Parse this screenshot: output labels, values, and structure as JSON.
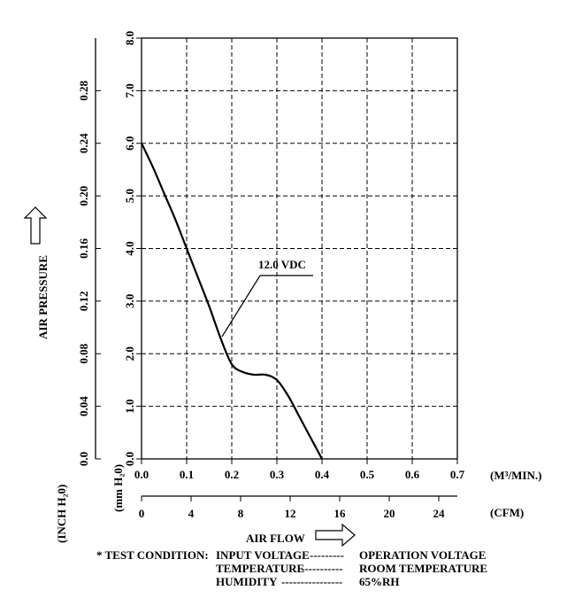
{
  "chart_data": {
    "type": "line",
    "xlabel": "AIR FLOW",
    "ylabel": "AIR PRESSURE",
    "x_unit_primary": "(M³/MIN.)",
    "x_unit_secondary": "(CFM)",
    "y_unit_primary": "(mm H₂0)",
    "y_unit_secondary": "(INCH H₂0)",
    "xlim": [
      0,
      0.7
    ],
    "ylim": [
      0,
      8.0
    ],
    "x_ticks": [
      "0.0",
      "0.1",
      "0.2",
      "0.3",
      "0.4",
      "0.5",
      "0.6",
      "0.7"
    ],
    "y_ticks": [
      "0.0",
      "1.0",
      "2.0",
      "3.0",
      "4.0",
      "5.0",
      "6.0",
      "7.0",
      "8.0"
    ],
    "cfm_ticks": [
      "0",
      "4",
      "8",
      "12",
      "16",
      "20",
      "24"
    ],
    "inch_ticks": [
      "0.0",
      "0.04",
      "0.08",
      "0.12",
      "0.16",
      "0.20",
      "0.24",
      "0.28"
    ],
    "grid": true,
    "series": [
      {
        "name": "12.0 VDC",
        "x": [
          0.0,
          0.025,
          0.05,
          0.075,
          0.1,
          0.125,
          0.15,
          0.175,
          0.2,
          0.225,
          0.25,
          0.275,
          0.3,
          0.325,
          0.35,
          0.375,
          0.4
        ],
        "y": [
          6.0,
          5.55,
          5.05,
          4.55,
          4.0,
          3.45,
          2.9,
          2.3,
          1.8,
          1.65,
          1.6,
          1.6,
          1.5,
          1.2,
          0.8,
          0.4,
          0.0
        ]
      }
    ]
  },
  "test_condition": {
    "title": "* TEST CONDITION:",
    "rows": [
      {
        "label": "INPUT VOLTAGE",
        "leader": "---------",
        "value": "OPERATION VOLTAGE"
      },
      {
        "label": "TEMPERATURE",
        "leader": "-----------",
        "value": "ROOM TEMPERATURE"
      },
      {
        "label": "HUMIDITY",
        "leader": "----------------",
        "value": "65%RH"
      }
    ]
  }
}
